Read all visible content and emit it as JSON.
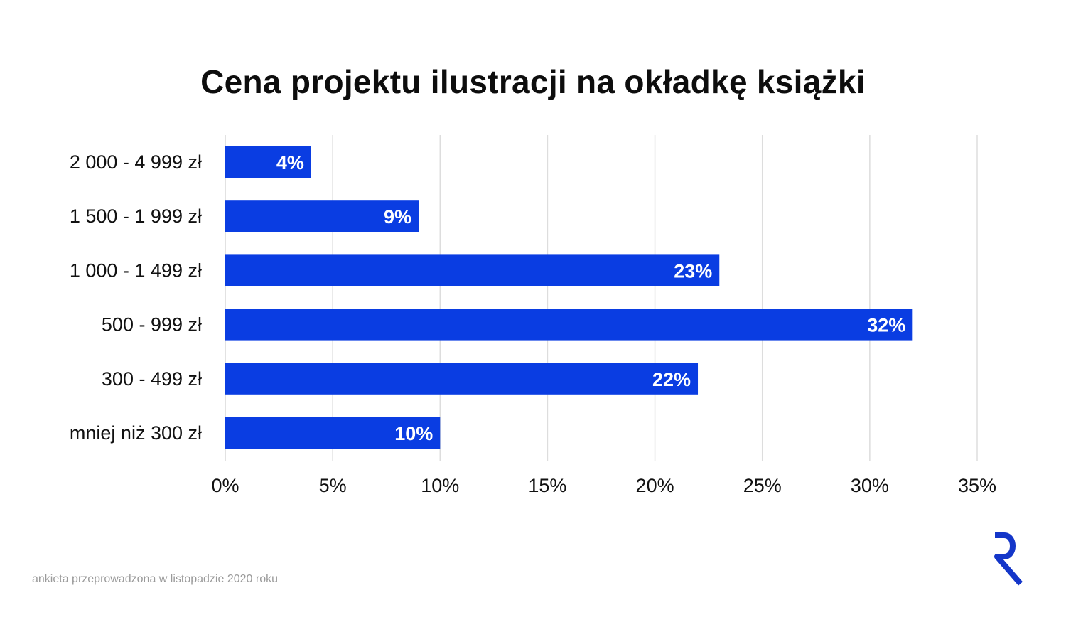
{
  "chart_data": {
    "type": "bar",
    "orientation": "horizontal",
    "title": "Cena projektu ilustracji na okładkę książki",
    "categories": [
      "2 000 - 4 999 zł",
      "1 500 - 1 999 zł",
      "1 000 - 1 499 zł",
      "500 - 999 zł",
      "300 - 499 zł",
      "mniej niż 300 zł"
    ],
    "values": [
      4,
      9,
      23,
      32,
      22,
      10
    ],
    "data_labels": [
      "4%",
      "9%",
      "23%",
      "32%",
      "22%",
      "10%"
    ],
    "x_ticks": [
      0,
      5,
      10,
      15,
      20,
      25,
      30,
      35
    ],
    "x_tick_labels": [
      "0%",
      "5%",
      "10%",
      "15%",
      "20%",
      "25%",
      "30%",
      "35%"
    ],
    "xlim": [
      0,
      35
    ],
    "grid": "vertical",
    "bar_color": "#0a3de2",
    "grid_color": "#dddddd"
  },
  "footnote": "ankieta przeprowadzona w listopadzie 2020 roku",
  "logo": {
    "icon": "r-logo-icon",
    "color": "#1436c9"
  }
}
